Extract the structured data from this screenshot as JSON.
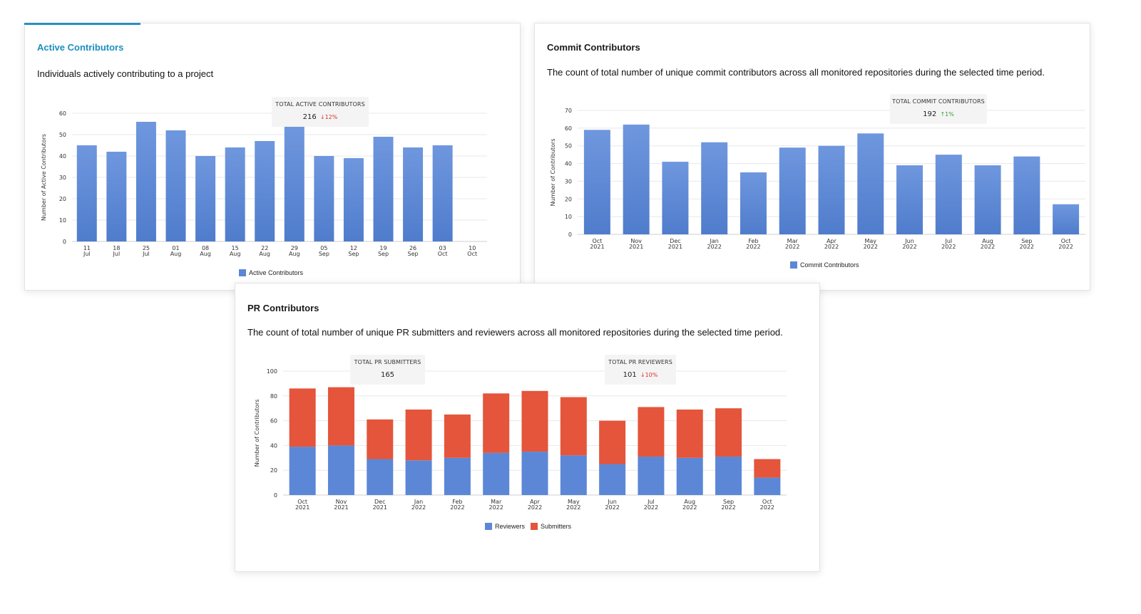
{
  "colors": {
    "accent": "#1a8fbf",
    "bar_blue": "#5b87d6",
    "bar_red": "#e4553b",
    "grid": "#e8e8e8",
    "down": "#d9342b",
    "up": "#3a9a3a"
  },
  "cards": {
    "active": {
      "title": "Active Contributors",
      "description": "Individuals actively contributing to a project",
      "kpi": {
        "label": "TOTAL ACTIVE CONTRIBUTORS",
        "value": "216",
        "change": "↓12%",
        "direction": "down"
      },
      "legend": [
        "Active Contributors"
      ]
    },
    "commit": {
      "title": "Commit Contributors",
      "description": "The count of total number of unique commit contributors across all monitored repositories during the selected time period.",
      "kpi": {
        "label": "TOTAL COMMIT CONTRIBUTORS",
        "value": "192",
        "change": "↑1%",
        "direction": "up"
      },
      "legend": [
        "Commit Contributors"
      ]
    },
    "pr": {
      "title": "PR Contributors",
      "description": "The count of total number of unique PR submitters and reviewers across all monitored repositories during the selected time period.",
      "kpi_submitters": {
        "label": "TOTAL PR SUBMITTERS",
        "value": "165"
      },
      "kpi_reviewers": {
        "label": "TOTAL PR REVIEWERS",
        "value": "101",
        "change": "↓10%",
        "direction": "down"
      },
      "legend": [
        "Reviewers",
        "Submitters"
      ]
    }
  },
  "chart_data": [
    {
      "id": "active",
      "type": "bar",
      "categories": [
        [
          "11",
          "Jul"
        ],
        [
          "18",
          "Jul"
        ],
        [
          "25",
          "Jul"
        ],
        [
          "01",
          "Aug"
        ],
        [
          "08",
          "Aug"
        ],
        [
          "15",
          "Aug"
        ],
        [
          "22",
          "Aug"
        ],
        [
          "29",
          "Aug"
        ],
        [
          "05",
          "Sep"
        ],
        [
          "12",
          "Sep"
        ],
        [
          "19",
          "Sep"
        ],
        [
          "26",
          "Sep"
        ],
        [
          "03",
          "Oct"
        ],
        [
          "10",
          "Oct"
        ]
      ],
      "series": [
        {
          "name": "Active Contributors",
          "values": [
            45,
            42,
            56,
            52,
            40,
            44,
            47,
            54,
            40,
            39,
            49,
            44,
            45,
            null
          ]
        }
      ],
      "ylabel": "Number of Active Contributors",
      "ylim": [
        0,
        60
      ],
      "yticks": [
        0,
        10,
        20,
        30,
        40,
        50,
        60
      ],
      "grid": true,
      "legend": "bottom"
    },
    {
      "id": "commit",
      "type": "bar",
      "categories": [
        [
          "Oct",
          "2021"
        ],
        [
          "Nov",
          "2021"
        ],
        [
          "Dec",
          "2021"
        ],
        [
          "Jan",
          "2022"
        ],
        [
          "Feb",
          "2022"
        ],
        [
          "Mar",
          "2022"
        ],
        [
          "Apr",
          "2022"
        ],
        [
          "May",
          "2022"
        ],
        [
          "Jun",
          "2022"
        ],
        [
          "Jul",
          "2022"
        ],
        [
          "Aug",
          "2022"
        ],
        [
          "Sep",
          "2022"
        ],
        [
          "Oct",
          "2022"
        ]
      ],
      "series": [
        {
          "name": "Commit Contributors",
          "values": [
            59,
            62,
            41,
            52,
            35,
            49,
            50,
            57,
            39,
            45,
            39,
            44,
            17
          ]
        }
      ],
      "ylabel": "Number of Contributors",
      "ylim": [
        0,
        70
      ],
      "yticks": [
        0,
        10,
        20,
        30,
        40,
        50,
        60,
        70
      ],
      "grid": true,
      "legend": "bottom"
    },
    {
      "id": "pr",
      "type": "bar",
      "stacked": true,
      "categories": [
        [
          "Oct",
          "2021"
        ],
        [
          "Nov",
          "2021"
        ],
        [
          "Dec",
          "2021"
        ],
        [
          "Jan",
          "2022"
        ],
        [
          "Feb",
          "2022"
        ],
        [
          "Mar",
          "2022"
        ],
        [
          "Apr",
          "2022"
        ],
        [
          "May",
          "2022"
        ],
        [
          "Jun",
          "2022"
        ],
        [
          "Jul",
          "2022"
        ],
        [
          "Aug",
          "2022"
        ],
        [
          "Sep",
          "2022"
        ],
        [
          "Oct",
          "2022"
        ]
      ],
      "series": [
        {
          "name": "Reviewers",
          "values": [
            39,
            40,
            29,
            28,
            30,
            34,
            35,
            32,
            25,
            31,
            30,
            31,
            14
          ]
        },
        {
          "name": "Submitters",
          "values": [
            47,
            47,
            32,
            41,
            35,
            48,
            49,
            47,
            35,
            40,
            39,
            39,
            15
          ]
        }
      ],
      "ylabel": "Number of Contributors",
      "ylim": [
        0,
        100
      ],
      "yticks": [
        0,
        20,
        40,
        60,
        80,
        100
      ],
      "grid": true,
      "legend": "bottom"
    }
  ]
}
